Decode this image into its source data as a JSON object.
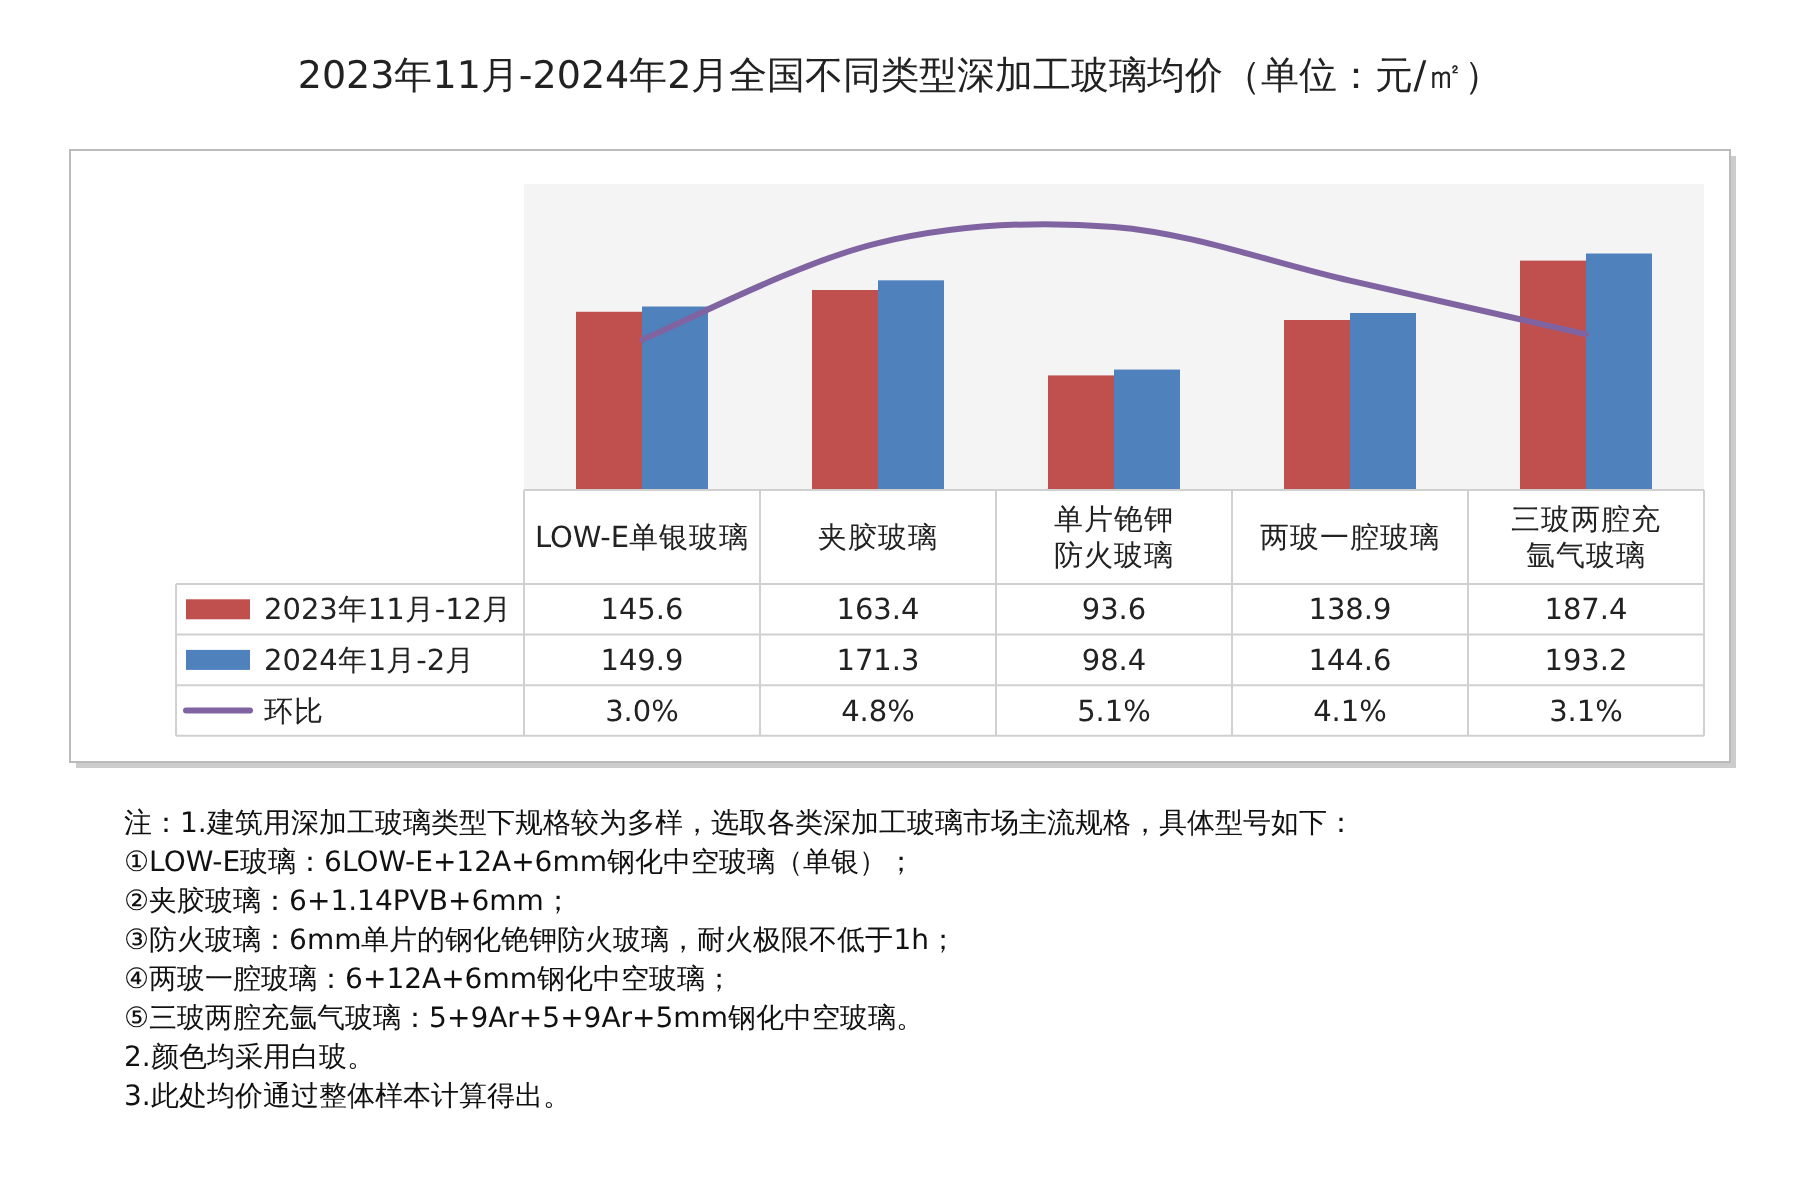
{
  "chart_data": {
    "type": "bar",
    "title": "2023年11月-2024年2月全国不同类型深加工玻璃均价（单位：元/㎡）",
    "categories": [
      "LOW-E单银玻璃",
      "夹胶玻璃",
      "单片铯钾防火玻璃",
      "两玻一腔玻璃",
      "三玻两腔充氩气玻璃"
    ],
    "series": [
      {
        "name": "2023年11月-12月",
        "color": "#c0504d",
        "values": [
          145.6,
          163.4,
          93.6,
          138.9,
          187.4
        ]
      },
      {
        "name": "2024年1月-2月",
        "color": "#4f81bd",
        "values": [
          149.9,
          171.3,
          98.4,
          144.6,
          193.2
        ]
      },
      {
        "name": "环比",
        "color": "#8064a2",
        "type": "line",
        "axis": "y2",
        "values": [
          3.0,
          4.8,
          5.1,
          4.1,
          3.1
        ],
        "value_labels": [
          "3.0%",
          "4.8%",
          "5.1%",
          "4.1%",
          "3.1%"
        ]
      }
    ],
    "ylim": [
      0,
      250
    ],
    "y2lim": [
      0.2,
      5.9
    ],
    "data_labels": true,
    "tick_labels": "x",
    "legend": "bottom left",
    "annotations": [
      "注：1.建筑用深加工玻璃类型下规格较为多样，选取各类深加工玻璃市场主流规格，具体型号如下：",
      "①LOW-E玻璃：6LOW-E+12A+6mm钢化中空玻璃（单银）；",
      "②夹胶玻璃：6+1.14PVB+6mm；",
      "③防火玻璃：6mm单片的钢化铯钾防火玻璃，耐火极限不低于1h；",
      "④两玻一腔玻璃：6+12A+6mm钢化中空玻璃；",
      "⑤三玻两腔充氩气玻璃：5+9Ar+5+9Ar+5mm钢化中空玻璃。",
      "2.颜色均采用白玻。",
      "3.此处均价通过整体样本计算得出。"
    ]
  }
}
